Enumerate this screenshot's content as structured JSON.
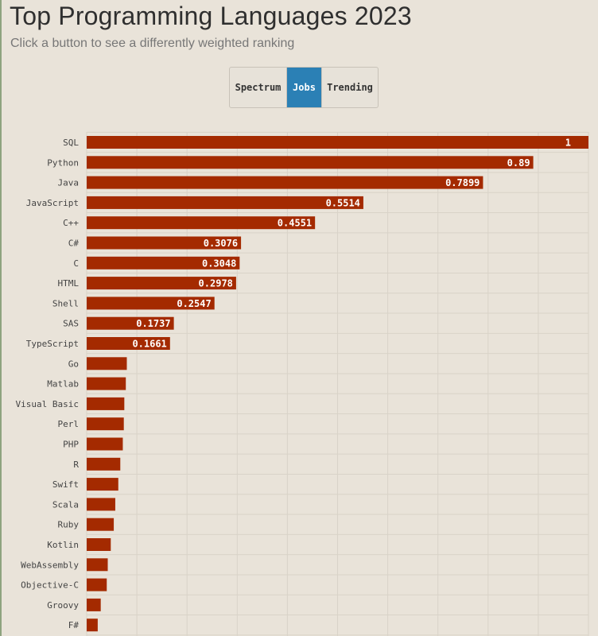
{
  "header": {
    "title": "Top Programming Languages 2023",
    "subtitle": "Click a button to see a differently weighted ranking"
  },
  "buttons": [
    {
      "label": "Spectrum",
      "active": false
    },
    {
      "label": "Jobs",
      "active": true
    },
    {
      "label": "Trending",
      "active": false
    }
  ],
  "colors": {
    "bar": "#a42a00",
    "active_button": "#2b80b5",
    "background": "#e9e3d9"
  },
  "chart_data": {
    "type": "bar",
    "orientation": "horizontal",
    "categories": [
      "SQL",
      "Python",
      "Java",
      "JavaScript",
      "C++",
      "C#",
      "C",
      "HTML",
      "Shell",
      "SAS",
      "TypeScript",
      "Go",
      "Matlab",
      "Visual Basic",
      "Perl",
      "PHP",
      "R",
      "Swift",
      "Scala",
      "Ruby",
      "Kotlin",
      "WebAssembly",
      "Objective-C",
      "Groovy",
      "F#"
    ],
    "values": [
      1,
      0.89,
      0.7899,
      0.5514,
      0.4551,
      0.3076,
      0.3048,
      0.2978,
      0.2547,
      0.1737,
      0.1661,
      0.08,
      0.078,
      0.075,
      0.074,
      0.072,
      0.067,
      0.063,
      0.057,
      0.054,
      0.048,
      0.042,
      0.04,
      0.028,
      0.022
    ],
    "value_labels": [
      "1",
      "0.89",
      "0.7899",
      "0.5514",
      "0.4551",
      "0.3076",
      "0.3048",
      "0.2978",
      "0.2547",
      "0.1737",
      "0.1661",
      "",
      "",
      "",
      "",
      "",
      "",
      "",
      "",
      "",
      "",
      "",
      "",
      "",
      ""
    ],
    "xlim": [
      0,
      1
    ],
    "grid": true
  }
}
